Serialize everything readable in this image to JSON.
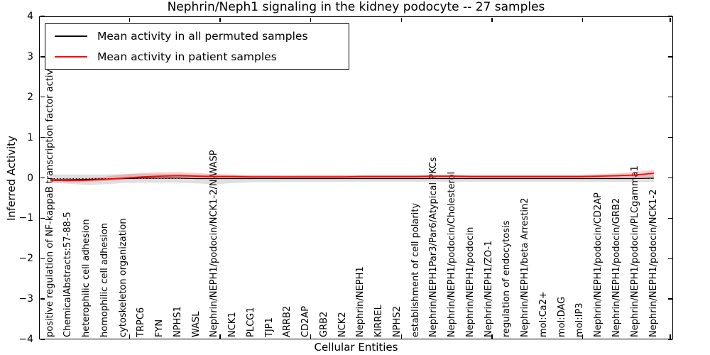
{
  "title": "Nephrin/Neph1 signaling in the kidney podocyte -- 27 samples",
  "axes": {
    "xlabel": "Cellular Entities",
    "ylabel": "Inferred Activity",
    "ytick_labels": [
      "4",
      "3",
      "2",
      "1",
      "0",
      "−1",
      "−2",
      "−3",
      "−4"
    ],
    "ylim": [
      -4,
      4
    ]
  },
  "legend": {
    "items": [
      {
        "label": "Mean activity in all permuted samples",
        "color": "#000000"
      },
      {
        "label": "Mean activity in patient samples",
        "color": "#ff0000"
      }
    ]
  },
  "chart_data": {
    "type": "line",
    "title": "Nephrin/Neph1 signaling in the kidney podocyte -- 27 samples",
    "xlabel": "Cellular Entities",
    "ylabel": "Inferred Activity",
    "ylim": [
      -4,
      4
    ],
    "grid": false,
    "legend_position": "upper left",
    "zero_line": {
      "value": 0,
      "style": "dotted",
      "color": "#000000"
    },
    "categories": [
      "positive regulation of NF-kappaB transcription factor activity",
      "ChemicalAbstracts:57-88-5",
      "heterophilic cell adhesion",
      "homophilic cell adhesion",
      "cytoskeleton organization",
      "TRPC6",
      "FYN",
      "NPHS1",
      "WASL",
      "Nephrin/NEPH1/podocin/NCK1-2/N-WASP",
      "NCK1",
      "PLCG1",
      "TJP1",
      "ARRB2",
      "CD2AP",
      "GRB2",
      "NCK2",
      "Nephrin/NEPH1",
      "KIRREL",
      "NPHS2",
      "establishment of cell polarity",
      "Nephrin/NEPH1Par3/Par6/Atypical PKCs",
      "Nephrin/NEPH1/podocin/Cholesterol",
      "Nephrin/NEPH1/podocin",
      "Nephrin/NEPH1/ZO-1",
      "regulation of endocytosis",
      "Nephrin/NEPH1/beta Arrestin2",
      "mol:Ca2+",
      "mol:DAG",
      "mol:IP3",
      "Nephrin/NEPH1/podocin/CD2AP",
      "Nephrin/NEPH1/podocin/GRB2",
      "Nephrin/NEPH1/podocin/PLCgamma1",
      "Nephrin/NEPH1/podocin/NCK1-2"
    ],
    "series": [
      {
        "name": "Mean activity in all permuted samples",
        "color": "#000000",
        "width": 1.3,
        "values": [
          -0.03,
          -0.03,
          -0.02,
          -0.01,
          0.0,
          0.01,
          0.01,
          0.01,
          0.0,
          0.0,
          0.0,
          0.0,
          0.0,
          0.0,
          0.0,
          0.0,
          0.0,
          0.0,
          0.0,
          0.0,
          0.0,
          0.0,
          0.0,
          0.0,
          0.0,
          0.0,
          0.0,
          0.0,
          0.0,
          0.0,
          0.0,
          0.0,
          0.0,
          0.01
        ]
      },
      {
        "name": "Mean activity in patient samples",
        "color": "#ff0000",
        "width": 1.8,
        "values": [
          -0.04,
          -0.05,
          -0.04,
          -0.02,
          0.01,
          0.04,
          0.06,
          0.07,
          0.06,
          0.05,
          0.05,
          0.04,
          0.04,
          0.04,
          0.04,
          0.04,
          0.04,
          0.05,
          0.05,
          0.05,
          0.05,
          0.06,
          0.06,
          0.05,
          0.05,
          0.05,
          0.05,
          0.05,
          0.05,
          0.05,
          0.06,
          0.07,
          0.09,
          0.13
        ]
      }
    ],
    "bands": [
      {
        "name": "permuted-samples-range",
        "color": "rgba(110,110,110,0.22)",
        "upper": [
          0.1,
          0.1,
          0.1,
          0.1,
          0.11,
          0.12,
          0.12,
          0.11,
          0.1,
          0.1,
          0.1,
          0.09,
          0.09,
          0.08,
          0.08,
          0.08,
          0.08,
          0.08,
          0.08,
          0.08,
          0.08,
          0.08,
          0.08,
          0.08,
          0.08,
          0.08,
          0.08,
          0.08,
          0.08,
          0.08,
          0.08,
          0.08,
          0.08,
          0.08
        ],
        "lower": [
          -0.1,
          -0.13,
          -0.16,
          -0.14,
          -0.11,
          -0.1,
          -0.1,
          -0.1,
          -0.12,
          -0.14,
          -0.11,
          -0.09,
          -0.09,
          -0.08,
          -0.08,
          -0.08,
          -0.08,
          -0.08,
          -0.08,
          -0.08,
          -0.08,
          -0.08,
          -0.08,
          -0.08,
          -0.08,
          -0.08,
          -0.08,
          -0.08,
          -0.08,
          -0.08,
          -0.08,
          -0.08,
          -0.08,
          -0.08
        ]
      },
      {
        "name": "patient-samples-range",
        "color": "rgba(255,0,0,0.18)",
        "upper": [
          0.0,
          0.01,
          0.02,
          0.05,
          0.1,
          0.14,
          0.16,
          0.16,
          0.14,
          0.11,
          0.09,
          0.08,
          0.08,
          0.08,
          0.09,
          0.09,
          0.09,
          0.09,
          0.09,
          0.09,
          0.09,
          0.09,
          0.09,
          0.09,
          0.09,
          0.09,
          0.09,
          0.09,
          0.09,
          0.09,
          0.11,
          0.13,
          0.17,
          0.22
        ],
        "lower": [
          -0.08,
          -0.09,
          -0.08,
          -0.06,
          -0.03,
          -0.01,
          0.0,
          0.01,
          0.01,
          0.0,
          0.0,
          0.0,
          0.0,
          0.01,
          0.01,
          0.01,
          0.01,
          0.01,
          0.01,
          0.01,
          0.01,
          0.01,
          0.01,
          0.01,
          0.01,
          0.01,
          0.01,
          0.01,
          0.01,
          0.01,
          0.01,
          0.02,
          0.03,
          0.05
        ]
      }
    ]
  }
}
